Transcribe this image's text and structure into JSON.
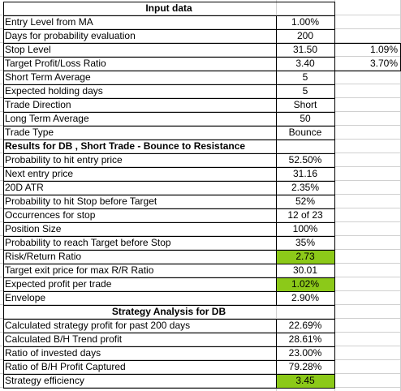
{
  "sheet": {
    "rows": [
      {
        "label": "Input data",
        "value": "",
        "extra": "",
        "header": true
      },
      {
        "label": "Entry Level from MA",
        "value": "1.00%",
        "extra": ""
      },
      {
        "label": "Days for probability evaluation",
        "value": "200",
        "extra": ""
      },
      {
        "label": "Stop Level",
        "value": "31.50",
        "extra": "1.09%"
      },
      {
        "label": "Target Profit/Loss Ratio",
        "value": "3.40",
        "extra": "3.70%"
      },
      {
        "label": "Short Term Average",
        "value": "5",
        "extra": ""
      },
      {
        "label": "Expected holding days",
        "value": "5",
        "extra": ""
      },
      {
        "label": "Trade Direction",
        "value": "Short",
        "extra": ""
      },
      {
        "label": "Long Term Average",
        "value": "50",
        "extra": ""
      },
      {
        "label": "Trade Type",
        "value": "Bounce",
        "extra": ""
      },
      {
        "label": "Results for DB , Short Trade - Bounce to Resistance",
        "value": "",
        "extra": "",
        "bold": true
      },
      {
        "label": "Probability to hit entry price",
        "value": "52.50%",
        "extra": ""
      },
      {
        "label": "Next entry price",
        "value": "31.16",
        "extra": ""
      },
      {
        "label": "20D ATR",
        "value": "2.35%",
        "extra": ""
      },
      {
        "label": "Probability to hit Stop before Target",
        "value": "52%",
        "extra": ""
      },
      {
        "label": "Occurrences for stop",
        "value": "12 of 23",
        "extra": ""
      },
      {
        "label": "Position Size",
        "value": "100%",
        "extra": ""
      },
      {
        "label": "Probability to reach Target before Stop",
        "value": "35%",
        "extra": ""
      },
      {
        "label": "Risk/Return Ratio",
        "value": "2.73",
        "extra": "",
        "highlight": true
      },
      {
        "label": "Target exit price for max R/R Ratio",
        "value": "30.01",
        "extra": ""
      },
      {
        "label": "Expected profit per trade",
        "value": "1.02%",
        "extra": "",
        "highlight": true
      },
      {
        "label": "Envelope",
        "value": "2.90%",
        "extra": ""
      },
      {
        "label": "Strategy Analysis for DB",
        "value": "",
        "extra": "",
        "header": true
      },
      {
        "label": "Calculated strategy profit for past 200 days",
        "value": "22.69%",
        "extra": ""
      },
      {
        "label": "Calculated B/H Trend profit",
        "value": "28.61%",
        "extra": ""
      },
      {
        "label": "Ratio of invested days",
        "value": "23.00%",
        "extra": ""
      },
      {
        "label": "Ratio of B/H Profit Captured",
        "value": "79.28%",
        "extra": ""
      },
      {
        "label": "Strategy efficiency",
        "value": "3.45",
        "extra": "",
        "highlight": true
      }
    ],
    "highlight_color": "#8cc919",
    "border_color": "#000000",
    "gridline_color": "#d0d0d0"
  }
}
